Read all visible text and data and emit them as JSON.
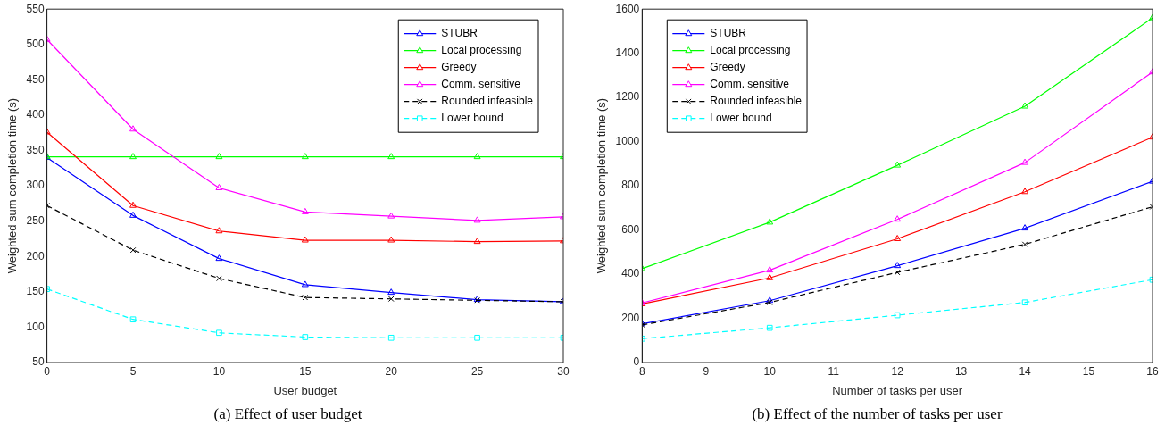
{
  "chart_data": [
    {
      "type": "line",
      "xlabel": "User budget",
      "ylabel": "Weighted sum completion time (s)",
      "annotations": [
        "(a) Effect of user budget"
      ],
      "x": [
        0,
        5,
        10,
        15,
        20,
        25,
        30
      ],
      "xlim": [
        0,
        30
      ],
      "xticks": [
        0,
        5,
        10,
        15,
        20,
        25,
        30
      ],
      "ylim": [
        50,
        550
      ],
      "yticks": [
        50,
        100,
        150,
        200,
        250,
        300,
        350,
        400,
        450,
        500,
        550
      ],
      "grid": false,
      "legend": "top right",
      "series": [
        {
          "name": "STUBR",
          "color": "#0000ff",
          "marker": "triangle",
          "line_style": "solid",
          "values": [
            340,
            258,
            197,
            160,
            149,
            139,
            136
          ]
        },
        {
          "name": "Local processing",
          "color": "#00ff00",
          "marker": "triangle",
          "line_style": "solid",
          "values": [
            341,
            341,
            341,
            341,
            341,
            341,
            341
          ]
        },
        {
          "name": "Greedy",
          "color": "#ff0000",
          "marker": "triangle",
          "line_style": "solid",
          "values": [
            376,
            272,
            236,
            223,
            223,
            221,
            222
          ]
        },
        {
          "name": "Comm. sensitive",
          "color": "#ff00ff",
          "marker": "triangle",
          "line_style": "solid",
          "values": [
            507,
            380,
            297,
            263,
            257,
            251,
            256
          ]
        },
        {
          "name": "Rounded infeasible",
          "color": "#000000",
          "marker": "cross",
          "line_style": "dashed",
          "values": [
            272,
            209,
            169,
            142,
            140,
            138,
            136
          ]
        },
        {
          "name": "Lower bound",
          "color": "#00ffff",
          "marker": "square",
          "line_style": "dashed",
          "values": [
            154,
            111,
            92,
            86,
            85,
            85,
            85
          ]
        }
      ]
    },
    {
      "type": "line",
      "xlabel": "Number of tasks per user",
      "ylabel": "Weighted sum completion time (s)",
      "annotations": [
        "(b) Effect of the number of tasks per user"
      ],
      "x": [
        8,
        10,
        12,
        14,
        16
      ],
      "xlim": [
        8,
        16
      ],
      "xticks": [
        8,
        9,
        10,
        11,
        12,
        13,
        14,
        15,
        16
      ],
      "ylim": [
        0,
        1600
      ],
      "yticks": [
        0,
        200,
        400,
        600,
        800,
        1000,
        1200,
        1400,
        1600
      ],
      "grid": false,
      "legend": "top left",
      "series": [
        {
          "name": "STUBR",
          "color": "#0000ff",
          "marker": "triangle",
          "line_style": "solid",
          "values": [
            175,
            280,
            438,
            608,
            820
          ]
        },
        {
          "name": "Local processing",
          "color": "#00ff00",
          "marker": "triangle",
          "line_style": "solid",
          "values": [
            425,
            635,
            893,
            1160,
            1560
          ]
        },
        {
          "name": "Greedy",
          "color": "#ff0000",
          "marker": "triangle",
          "line_style": "solid",
          "values": [
            265,
            383,
            560,
            773,
            1020
          ]
        },
        {
          "name": "Comm. sensitive",
          "color": "#ff00ff",
          "marker": "triangle",
          "line_style": "solid",
          "values": [
            270,
            418,
            648,
            905,
            1315
          ]
        },
        {
          "name": "Rounded infeasible",
          "color": "#000000",
          "marker": "cross",
          "line_style": "dashed",
          "values": [
            170,
            272,
            408,
            535,
            705
          ]
        },
        {
          "name": "Lower bound",
          "color": "#00ffff",
          "marker": "square",
          "line_style": "dashed",
          "values": [
            108,
            157,
            214,
            272,
            375
          ]
        }
      ]
    }
  ]
}
